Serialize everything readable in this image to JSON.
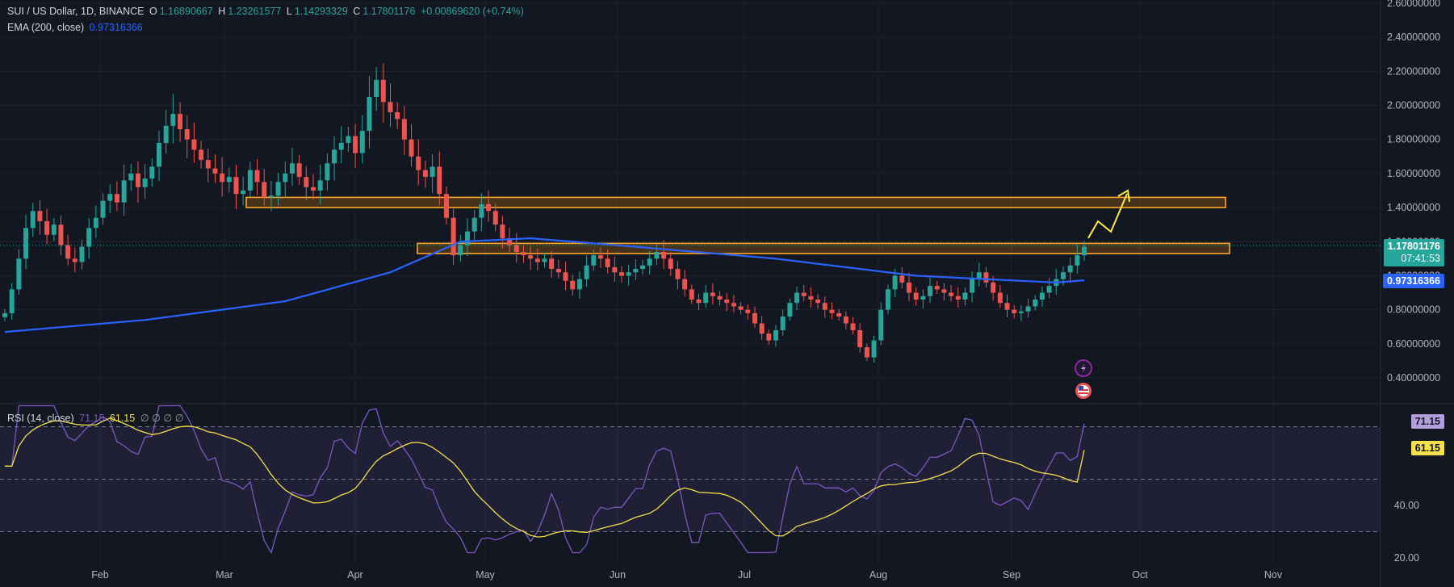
{
  "header": {
    "symbol": "SUI / US Dollar, 1D, BINANCE",
    "open_label": "O",
    "open": "1.16890667",
    "high_label": "H",
    "high": "1.23261577",
    "low_label": "L",
    "low": "1.14293329",
    "close_label": "C",
    "close": "1.17801176",
    "change": "+0.00869620 (+0.74%)",
    "ema_label": "EMA (200, close)",
    "ema_value": "0.97316366",
    "rsi_label": "RSI (14, close)",
    "rsi_value": "71.15",
    "rsi_ma_value": "61.15",
    "rsi_na": "∅ ∅ ∅ ∅"
  },
  "price_tags": {
    "last": "1.17801176",
    "countdown": "07:41:53",
    "ema": "0.97316366",
    "rsi": "71.15",
    "rsi_ma": "61.15"
  },
  "colors": {
    "background": "#131722",
    "up": "#26a69a",
    "down": "#ef5350",
    "ema": "#2962ff",
    "rsi": "#7e57c2",
    "rsi_ma": "#f4e04d",
    "zone_fill": "#ff9800",
    "zone_border": "#ffa726",
    "arrow": "#ffeb3b"
  },
  "icons": [
    "lightning-icon",
    "us-flag-icon"
  ],
  "chart_data": [
    {
      "type": "candlestick",
      "title": "SUI / US Dollar, 1D, BINANCE",
      "x_ticks": [
        "Feb",
        "Mar",
        "Apr",
        "May",
        "Jun",
        "Jul",
        "Aug",
        "Sep",
        "Oct",
        "Nov"
      ],
      "y_ticks": [
        "2.60000000",
        "2.40000000",
        "2.20000000",
        "2.00000000",
        "1.80000000",
        "1.60000000",
        "1.40000000",
        "1.20000000",
        "1.00000000",
        "0.80000000",
        "0.60000000",
        "0.40000000"
      ],
      "ylim": [
        0.3,
        2.6
      ],
      "close_series": [
        0.78,
        0.92,
        1.1,
        1.28,
        1.38,
        1.32,
        1.24,
        1.3,
        1.18,
        1.1,
        1.08,
        1.17,
        1.28,
        1.34,
        1.44,
        1.48,
        1.43,
        1.56,
        1.6,
        1.52,
        1.57,
        1.64,
        1.78,
        1.88,
        1.95,
        1.86,
        1.8,
        1.74,
        1.68,
        1.63,
        1.6,
        1.55,
        1.58,
        1.48,
        1.5,
        1.62,
        1.55,
        1.46,
        1.47,
        1.55,
        1.6,
        1.66,
        1.58,
        1.52,
        1.5,
        1.56,
        1.66,
        1.74,
        1.78,
        1.82,
        1.72,
        1.85,
        2.05,
        2.15,
        2.02,
        1.96,
        1.92,
        1.8,
        1.7,
        1.62,
        1.58,
        1.64,
        1.48,
        1.34,
        1.12,
        1.18,
        1.26,
        1.34,
        1.42,
        1.38,
        1.3,
        1.22,
        1.18,
        1.14,
        1.12,
        1.1,
        1.08,
        1.1,
        1.04,
        1.02,
        0.97,
        0.92,
        0.98,
        1.06,
        1.12,
        1.1,
        1.05,
        1.02,
        1.0,
        1.02,
        1.04,
        1.06,
        1.1,
        1.14,
        1.1,
        1.04,
        0.98,
        0.92,
        0.86,
        0.84,
        0.9,
        0.88,
        0.86,
        0.84,
        0.82,
        0.8,
        0.78,
        0.72,
        0.66,
        0.62,
        0.68,
        0.76,
        0.84,
        0.9,
        0.88,
        0.86,
        0.84,
        0.8,
        0.78,
        0.76,
        0.72,
        0.68,
        0.58,
        0.52,
        0.62,
        0.8,
        0.92,
        1.0,
        0.96,
        0.9,
        0.86,
        0.88,
        0.94,
        0.92,
        0.9,
        0.88,
        0.86,
        0.9,
        0.98,
        1.02,
        0.96,
        0.9,
        0.84,
        0.8,
        0.78,
        0.79,
        0.82,
        0.86,
        0.9,
        0.94,
        0.98,
        1.02,
        1.06,
        1.12,
        1.17
      ],
      "ema_200": {
        "x_start_index": 0,
        "values_note": "rises from 0.67 to 1.25 by April, then declines to 0.97"
      },
      "zones": [
        {
          "low": 1.4,
          "high": 1.46
        },
        {
          "low": 1.13,
          "high": 1.19
        }
      ],
      "projection": "upward arrow toward 1.47"
    },
    {
      "type": "line",
      "title": "RSI (14, close)",
      "y_ticks": [
        "40.00",
        "20.00"
      ],
      "levels": [
        70,
        50,
        30
      ],
      "series": [
        {
          "name": "RSI",
          "last": 71.15
        },
        {
          "name": "RSI MA",
          "last": 61.15
        }
      ]
    }
  ]
}
